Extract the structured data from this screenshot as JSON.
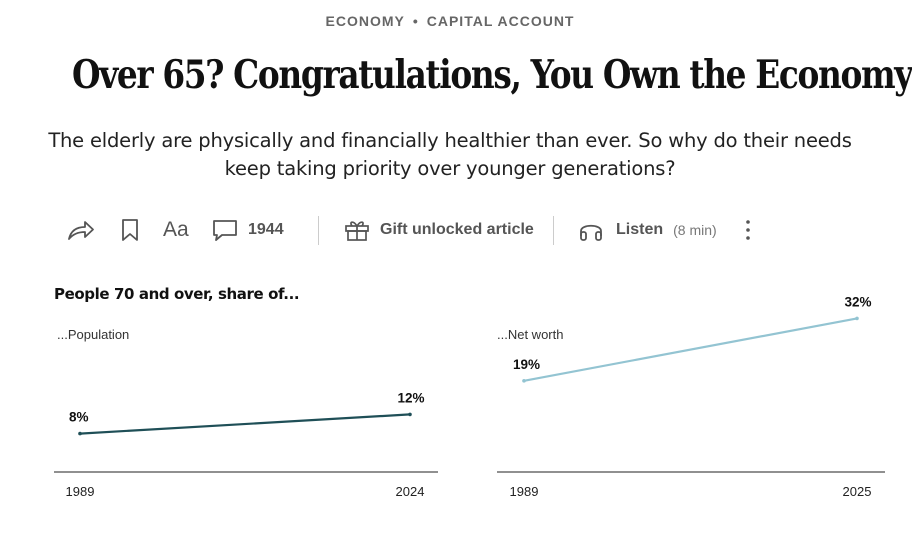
{
  "kicker": {
    "section": "ECONOMY",
    "separator": "•",
    "column": "CAPITAL ACCOUNT"
  },
  "headline": "Over 65? Congratulations, You Own the Economy",
  "dek": "The elderly are physically and financially healthier than ever. So why do their needs keep taking priority over younger generations?",
  "toolbar": {
    "share_icon": "share-arrow-icon",
    "bookmark_icon": "bookmark-icon",
    "text_size_label": "Aa",
    "comments_icon": "comment-bubble-icon",
    "comments_count": "1944",
    "gift_icon": "gift-icon",
    "gift_label": "Gift unlocked article",
    "listen_icon": "headphones-icon",
    "listen_label": "Listen",
    "listen_duration": "(8 min)",
    "more_icon": "vertical-ellipsis-icon"
  },
  "chart_data": {
    "type": "line",
    "title": "People 70 and over, share of...",
    "panels": [
      {
        "subtitle": "...Population",
        "x": [
          "1989",
          "2024"
        ],
        "values": [
          8,
          12
        ],
        "labels": [
          "8%",
          "12%"
        ],
        "color": "#1f4f57",
        "ylim": [
          0,
          35
        ]
      },
      {
        "subtitle": "...Net worth",
        "x": [
          "1989",
          "2025"
        ],
        "values": [
          19,
          32
        ],
        "labels": [
          "19%",
          "32%"
        ],
        "color": "#93c4d2",
        "ylim": [
          0,
          35
        ]
      }
    ]
  }
}
